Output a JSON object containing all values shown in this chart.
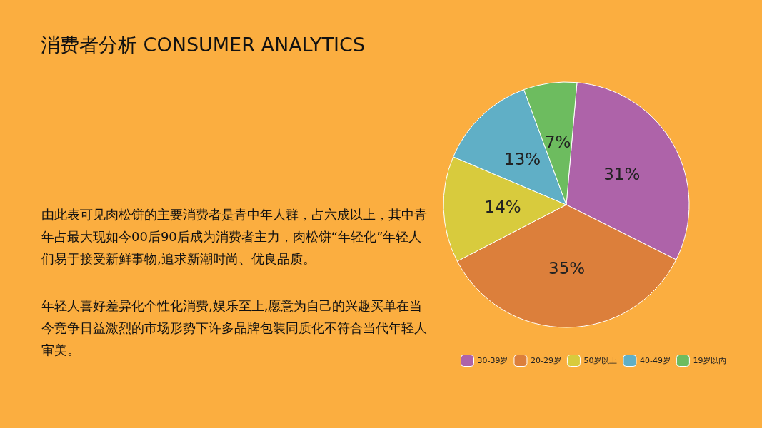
{
  "chart_data": {
    "type": "pie",
    "title": "消费者分析 CONSUMER ANALYTICS",
    "categories": [
      "30-39岁",
      "20-29岁",
      "50岁以上",
      "40-49岁",
      "19岁以内"
    ],
    "values": [
      31,
      35,
      14,
      13,
      7
    ],
    "colors": [
      "#ae63a9",
      "#dc7f3b",
      "#d8cb3d",
      "#60afc6",
      "#6dbc5f"
    ],
    "value_labels": [
      "31%",
      "35%",
      "14%",
      "13%",
      "7%"
    ],
    "legend": "bottom",
    "annotations": [
      "由此表可见肉松饼的主要消费者是青中年人群，占六成以上，其中青年占最大现如今00后90后成为消费者主力，肉松饼“年轻化”年轻人们易于接受新鲜事物,追求新潮时尚、优良品质。",
      "年轻人喜好差异化个性化消费,娱乐至上,愿意为自己的兴趣买单在当今竞争日益激烈的市场形势下许多品牌包装同质化不符合当代年轻人审美。"
    ]
  }
}
